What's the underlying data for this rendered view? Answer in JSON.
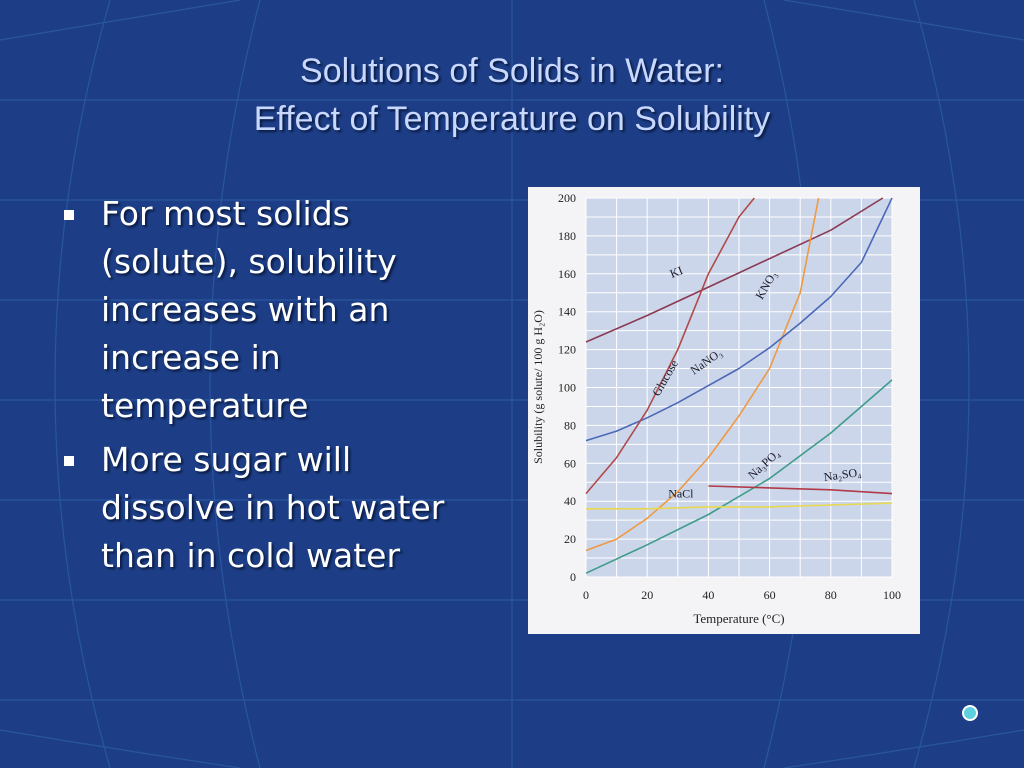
{
  "slide": {
    "title_line1": "Solutions of Solids in Water:",
    "title_line2": "Effect of Temperature on Solubility",
    "bullets": [
      "For most solids (solute), solubility increases with an increase in temperature",
      "More sugar will dissolve in hot water than in cold water"
    ]
  },
  "colors": {
    "background": "#1d3e86",
    "title": "#c9d8ff",
    "plot_area": "#ccd6ea",
    "grid": "#ffffff"
  },
  "chart_data": {
    "type": "line",
    "xlabel": "Temperature (°C)",
    "ylabel": "Solubility (g solute/ 100 g H₂O)",
    "xlim": [
      0,
      100
    ],
    "ylim": [
      0,
      200
    ],
    "xticks": [
      "0",
      "20",
      "40",
      "60",
      "80",
      "100"
    ],
    "yticks": [
      "0",
      "20",
      "40",
      "60",
      "80",
      "100",
      "120",
      "140",
      "160",
      "180",
      "200"
    ],
    "grid": true,
    "legend": "none",
    "series": [
      {
        "name": "KI",
        "color": "#8a3a52",
        "x": [
          0,
          20,
          40,
          60,
          80,
          97
        ],
        "y": [
          124,
          138,
          153,
          168,
          183,
          200
        ]
      },
      {
        "name": "KNO₃",
        "color": "#ee9a42",
        "x": [
          0,
          10,
          20,
          30,
          40,
          50,
          60,
          70,
          76
        ],
        "y": [
          14,
          20,
          31,
          45,
          63,
          85,
          110,
          150,
          200
        ]
      },
      {
        "name": "NaNO₃",
        "color": "#4b68b8",
        "x": [
          0,
          10,
          20,
          30,
          40,
          50,
          60,
          70,
          80,
          90,
          100
        ],
        "y": [
          72,
          77,
          84,
          92,
          101,
          110,
          121,
          134,
          148,
          166,
          200
        ]
      },
      {
        "name": "Glucose",
        "color": "#b04a4a",
        "x": [
          0,
          10,
          20,
          30,
          40,
          50,
          55
        ],
        "y": [
          44,
          63,
          88,
          120,
          160,
          190,
          200
        ]
      },
      {
        "name": "Na₃PO₄",
        "color": "#3e9c8a",
        "x": [
          0,
          20,
          40,
          60,
          80,
          100
        ],
        "y": [
          2,
          17,
          33,
          52,
          76,
          104
        ]
      },
      {
        "name": "NaCl",
        "color": "#e8d850",
        "x": [
          0,
          20,
          40,
          60,
          80,
          100
        ],
        "y": [
          36,
          36,
          37,
          37,
          38,
          39
        ]
      },
      {
        "name": "Na₂SO₄",
        "color": "#b03a4a",
        "x": [
          40,
          60,
          80,
          100
        ],
        "y": [
          48,
          47,
          46,
          44
        ]
      }
    ],
    "annotations": [
      {
        "text": "KI",
        "x": 30,
        "y": 159,
        "rotate": -22
      },
      {
        "text": "KNO₃",
        "x": 60,
        "y": 153,
        "rotate": -60
      },
      {
        "text": "NaNO₃",
        "x": 40,
        "y": 112,
        "rotate": -35
      },
      {
        "text": "Glucose",
        "x": 27,
        "y": 104,
        "rotate": -60
      },
      {
        "text": "Na₃PO₄",
        "x": 59,
        "y": 58,
        "rotate": -42
      },
      {
        "text": "NaCl",
        "x": 31,
        "y": 42,
        "rotate": 0
      },
      {
        "text": "Na₂SO₄",
        "x": 84,
        "y": 52,
        "rotate": -8
      }
    ]
  }
}
